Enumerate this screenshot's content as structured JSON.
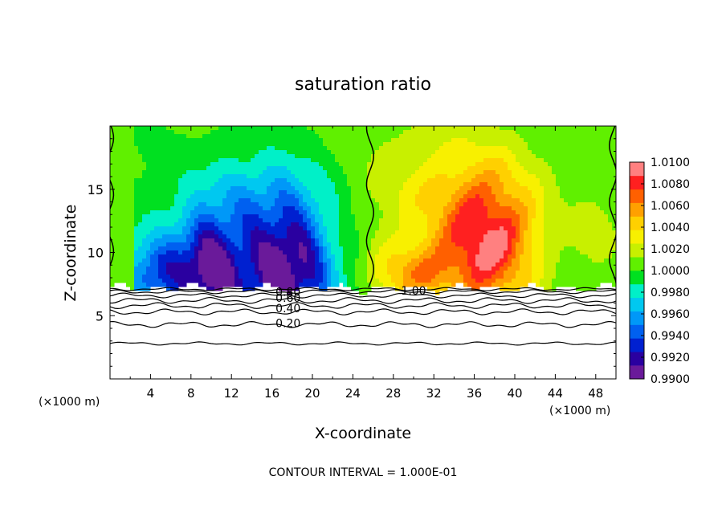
{
  "chart_data": {
    "type": "heatmap",
    "title": "saturation ratio",
    "xlabel": "X-coordinate",
    "ylabel": "Z-coordinate",
    "x_unit_label": "(×1000 m)",
    "y_unit_label": "(×1000 m)",
    "xlim": [
      0,
      50
    ],
    "ylim": [
      0,
      20
    ],
    "x_ticks": [
      "4",
      "8",
      "12",
      "16",
      "20",
      "24",
      "28",
      "32",
      "36",
      "40",
      "44",
      "48"
    ],
    "y_ticks": [
      "5",
      "10",
      "15"
    ],
    "footer": "CONTOUR INTERVAL = 1.000E-01",
    "colorbar": {
      "min": 0.99,
      "max": 1.01,
      "ticks": [
        "1.0100",
        "1.0080",
        "1.0060",
        "1.0040",
        "1.0020",
        "1.0000",
        "0.9980",
        "0.9960",
        "0.9940",
        "0.9920",
        "0.9900"
      ]
    },
    "contour_labels": [
      {
        "text": "0.20",
        "x": 17.6,
        "z": 4.4
      },
      {
        "text": "0.40",
        "x": 17.6,
        "z": 5.6
      },
      {
        "text": "0.60",
        "x": 17.6,
        "z": 6.4
      },
      {
        "text": "0.80",
        "x": 17.6,
        "z": 6.9
      },
      {
        "text": "1.00",
        "x": 30.0,
        "z": 7.0
      }
    ],
    "contour_levels": [
      {
        "z": 2.8,
        "amp": 0.08
      },
      {
        "z": 4.3,
        "amp": 0.15
      },
      {
        "z": 5.3,
        "amp": 0.15
      },
      {
        "z": 5.8,
        "amp": 0.15
      },
      {
        "z": 6.2,
        "amp": 0.15
      },
      {
        "z": 6.6,
        "amp": 0.12
      },
      {
        "z": 6.9,
        "amp": 0.1
      },
      {
        "z": 7.1,
        "amp": 0.08
      }
    ],
    "cloud_base_z": 7.2,
    "boundary_x": [
      0.0,
      25.7,
      49.7
    ],
    "colors": {
      "palette": [
        "#6a1a9a",
        "#2a00a0",
        "#0020d0",
        "#0060f0",
        "#0098f8",
        "#00c8f0",
        "#00f0c8",
        "#00e020",
        "#60f000",
        "#c8f000",
        "#f8f000",
        "#ffd000",
        "#ffa000",
        "#ff6000",
        "#ff2020",
        "#ff8080"
      ]
    }
  }
}
